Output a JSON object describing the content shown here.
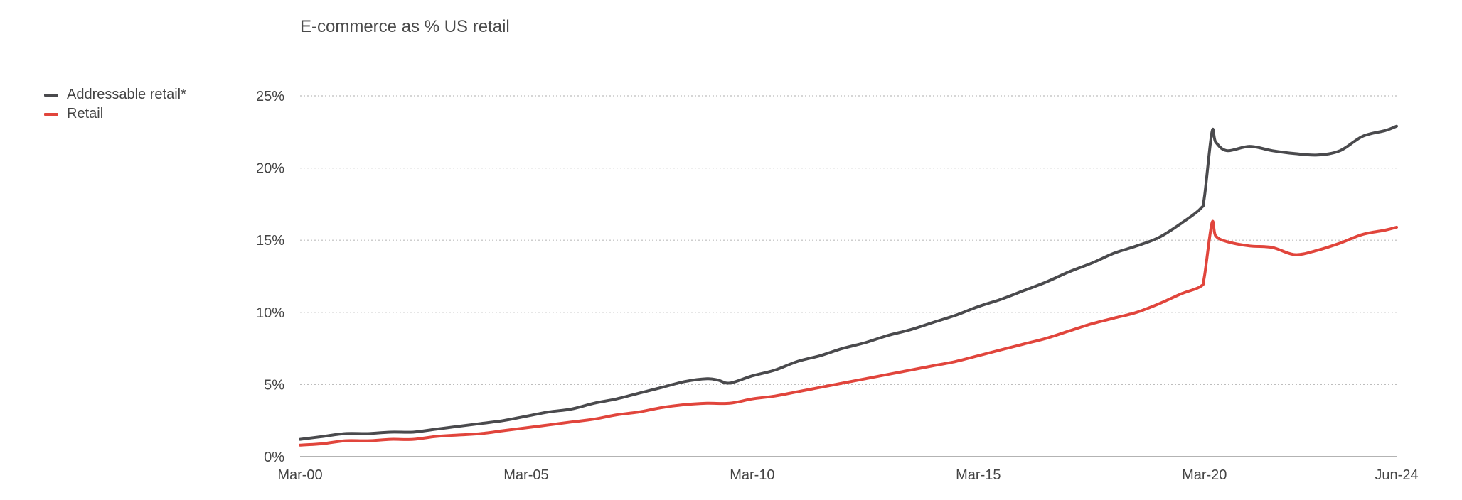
{
  "chart_data": {
    "type": "line",
    "title": "E-commerce as % US retail",
    "xlabel": "",
    "ylabel": "",
    "x_ticks": [
      "Mar-00",
      "Mar-05",
      "Mar-10",
      "Mar-15",
      "Mar-20",
      "Jun-24"
    ],
    "x_range": [
      "2000-03",
      "2024-06"
    ],
    "ylim": [
      0,
      25
    ],
    "y_ticks": [
      "0%",
      "5%",
      "10%",
      "15%",
      "20%",
      "25%"
    ],
    "y_tick_values": [
      0,
      5,
      10,
      15,
      20,
      25
    ],
    "grid": "horizontal dotted",
    "legend_position": "top-left",
    "series": [
      {
        "name": "Addressable retail*",
        "color": "#4a4a4d",
        "points": [
          [
            "2000-03",
            1.2
          ],
          [
            "2000-09",
            1.4
          ],
          [
            "2001-03",
            1.6
          ],
          [
            "2001-09",
            1.6
          ],
          [
            "2002-03",
            1.7
          ],
          [
            "2002-09",
            1.7
          ],
          [
            "2003-03",
            1.9
          ],
          [
            "2003-09",
            2.1
          ],
          [
            "2004-03",
            2.3
          ],
          [
            "2004-09",
            2.5
          ],
          [
            "2005-03",
            2.8
          ],
          [
            "2005-09",
            3.1
          ],
          [
            "2006-03",
            3.3
          ],
          [
            "2006-09",
            3.7
          ],
          [
            "2007-03",
            4.0
          ],
          [
            "2007-09",
            4.4
          ],
          [
            "2008-03",
            4.8
          ],
          [
            "2008-09",
            5.2
          ],
          [
            "2009-03",
            5.4
          ],
          [
            "2009-06",
            5.3
          ],
          [
            "2009-09",
            5.1
          ],
          [
            "2010-03",
            5.6
          ],
          [
            "2010-09",
            6.0
          ],
          [
            "2011-03",
            6.6
          ],
          [
            "2011-09",
            7.0
          ],
          [
            "2012-03",
            7.5
          ],
          [
            "2012-09",
            7.9
          ],
          [
            "2013-03",
            8.4
          ],
          [
            "2013-09",
            8.8
          ],
          [
            "2014-03",
            9.3
          ],
          [
            "2014-09",
            9.8
          ],
          [
            "2015-03",
            10.4
          ],
          [
            "2015-09",
            10.9
          ],
          [
            "2016-03",
            11.5
          ],
          [
            "2016-09",
            12.1
          ],
          [
            "2017-03",
            12.8
          ],
          [
            "2017-09",
            13.4
          ],
          [
            "2018-03",
            14.1
          ],
          [
            "2018-09",
            14.6
          ],
          [
            "2019-03",
            15.2
          ],
          [
            "2019-09",
            16.2
          ],
          [
            "2020-02",
            17.2
          ],
          [
            "2020-03",
            18.0
          ],
          [
            "2020-05",
            22.5
          ],
          [
            "2020-06",
            21.8
          ],
          [
            "2020-09",
            21.2
          ],
          [
            "2021-03",
            21.5
          ],
          [
            "2021-09",
            21.2
          ],
          [
            "2022-03",
            21.0
          ],
          [
            "2022-09",
            20.9
          ],
          [
            "2023-03",
            21.2
          ],
          [
            "2023-09",
            22.2
          ],
          [
            "2024-03",
            22.6
          ],
          [
            "2024-06",
            22.9
          ]
        ]
      },
      {
        "name": "Retail",
        "color": "#e1453c",
        "points": [
          [
            "2000-03",
            0.8
          ],
          [
            "2000-09",
            0.9
          ],
          [
            "2001-03",
            1.1
          ],
          [
            "2001-09",
            1.1
          ],
          [
            "2002-03",
            1.2
          ],
          [
            "2002-09",
            1.2
          ],
          [
            "2003-03",
            1.4
          ],
          [
            "2003-09",
            1.5
          ],
          [
            "2004-03",
            1.6
          ],
          [
            "2004-09",
            1.8
          ],
          [
            "2005-03",
            2.0
          ],
          [
            "2005-09",
            2.2
          ],
          [
            "2006-03",
            2.4
          ],
          [
            "2006-09",
            2.6
          ],
          [
            "2007-03",
            2.9
          ],
          [
            "2007-09",
            3.1
          ],
          [
            "2008-03",
            3.4
          ],
          [
            "2008-09",
            3.6
          ],
          [
            "2009-03",
            3.7
          ],
          [
            "2009-09",
            3.7
          ],
          [
            "2010-03",
            4.0
          ],
          [
            "2010-09",
            4.2
          ],
          [
            "2011-03",
            4.5
          ],
          [
            "2011-09",
            4.8
          ],
          [
            "2012-03",
            5.1
          ],
          [
            "2012-09",
            5.4
          ],
          [
            "2013-03",
            5.7
          ],
          [
            "2013-09",
            6.0
          ],
          [
            "2014-03",
            6.3
          ],
          [
            "2014-09",
            6.6
          ],
          [
            "2015-03",
            7.0
          ],
          [
            "2015-09",
            7.4
          ],
          [
            "2016-03",
            7.8
          ],
          [
            "2016-09",
            8.2
          ],
          [
            "2017-03",
            8.7
          ],
          [
            "2017-09",
            9.2
          ],
          [
            "2018-03",
            9.6
          ],
          [
            "2018-09",
            10.0
          ],
          [
            "2019-03",
            10.6
          ],
          [
            "2019-09",
            11.3
          ],
          [
            "2020-02",
            11.8
          ],
          [
            "2020-03",
            12.5
          ],
          [
            "2020-05",
            16.2
          ],
          [
            "2020-06",
            15.3
          ],
          [
            "2020-09",
            14.9
          ],
          [
            "2021-03",
            14.6
          ],
          [
            "2021-09",
            14.5
          ],
          [
            "2022-03",
            14.0
          ],
          [
            "2022-09",
            14.3
          ],
          [
            "2023-03",
            14.8
          ],
          [
            "2023-09",
            15.4
          ],
          [
            "2024-03",
            15.7
          ],
          [
            "2024-06",
            15.9
          ]
        ]
      }
    ]
  }
}
